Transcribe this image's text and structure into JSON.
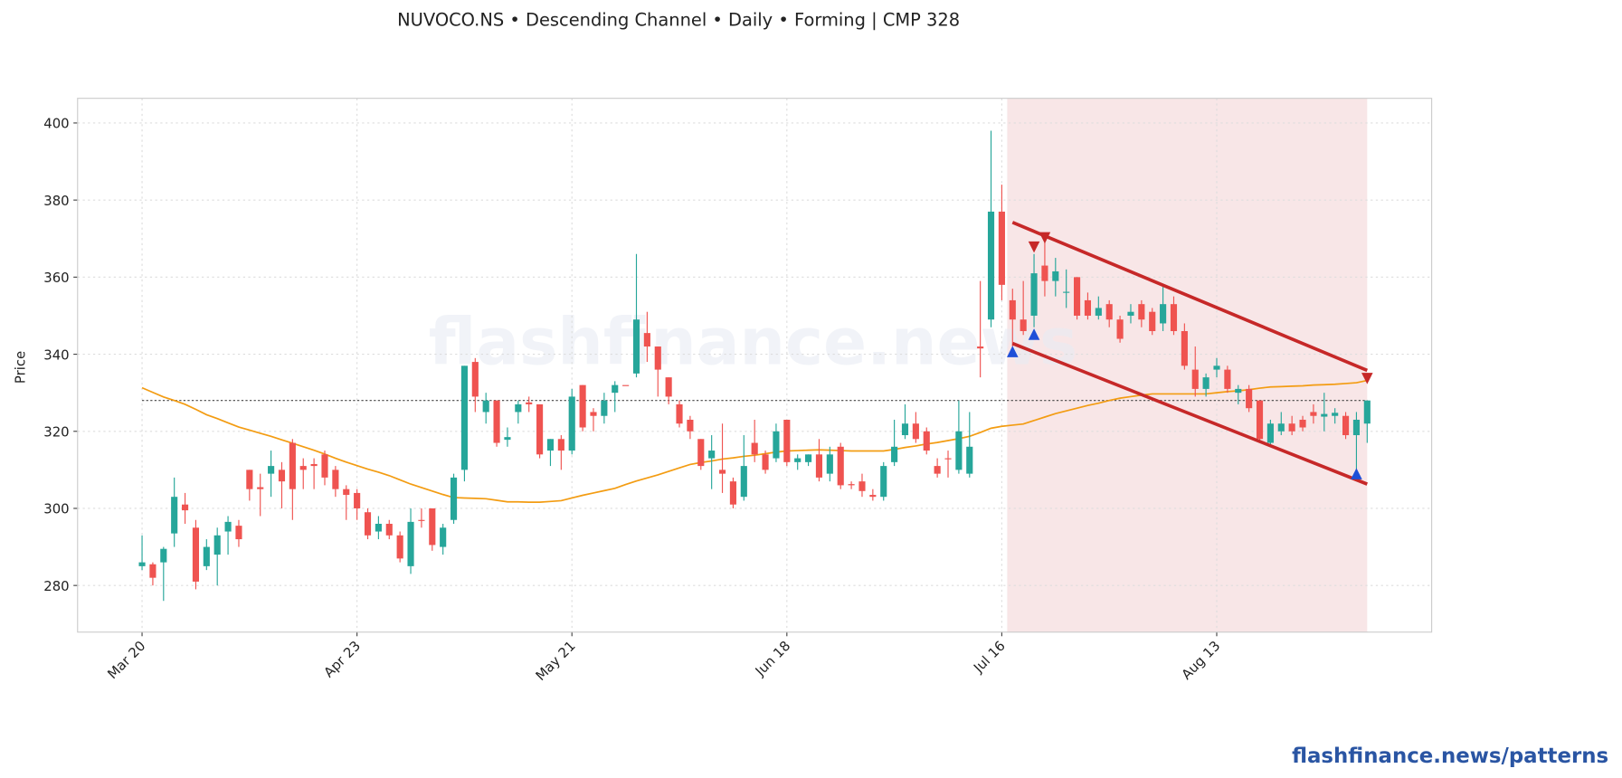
{
  "chart_data": {
    "type": "candlestick",
    "title": "NUVOCO.NS  •  Descending Channel  •  Daily  •  Forming  |  CMP 328",
    "y_label": "Price",
    "watermark": "flashfinance.news",
    "grid": true,
    "up_color": "#26a69a",
    "down_color": "#ef5350",
    "xlim": [
      -6,
      120
    ],
    "ylim": [
      267.9,
      406.4
    ],
    "yticks": [
      280,
      300,
      320,
      340,
      360,
      380,
      400
    ],
    "categories": [
      "Mar 20",
      null,
      null,
      null,
      null,
      null,
      null,
      null,
      null,
      null,
      null,
      null,
      null,
      null,
      null,
      null,
      null,
      null,
      null,
      null,
      "Apr 23",
      null,
      null,
      null,
      null,
      null,
      null,
      null,
      null,
      null,
      null,
      null,
      null,
      null,
      null,
      null,
      null,
      null,
      null,
      null,
      "May 21",
      null,
      null,
      null,
      null,
      null,
      null,
      null,
      null,
      null,
      null,
      null,
      null,
      null,
      null,
      null,
      null,
      null,
      null,
      null,
      "Jun 18",
      null,
      null,
      null,
      null,
      null,
      null,
      null,
      null,
      null,
      null,
      null,
      null,
      null,
      null,
      null,
      null,
      null,
      null,
      null,
      "Jul 16",
      null,
      null,
      null,
      null,
      null,
      null,
      null,
      null,
      null,
      null,
      null,
      null,
      null,
      null,
      null,
      null,
      null,
      null,
      null,
      "Aug 13",
      null,
      null,
      null,
      null,
      null,
      null,
      null,
      null,
      null,
      null,
      null,
      null,
      null,
      null
    ],
    "open": [
      285,
      285.5,
      286,
      293.5,
      301,
      295,
      285,
      288,
      294,
      295.5,
      310,
      305.5,
      309,
      310,
      317,
      311,
      311.5,
      314,
      310,
      305,
      304,
      299,
      294,
      296,
      293,
      285,
      297,
      300,
      290,
      297,
      310,
      338,
      325,
      328,
      317.8,
      325,
      327.5,
      327,
      315,
      318,
      315,
      332,
      325,
      324,
      330,
      332,
      335,
      345.5,
      342,
      334,
      327,
      323,
      318,
      313,
      310,
      307,
      303,
      317,
      314,
      313,
      323,
      312,
      312,
      314,
      309,
      316,
      306.3,
      307,
      303.5,
      303,
      312,
      319,
      322,
      320,
      311,
      313,
      310,
      309,
      342,
      349,
      377,
      354,
      349,
      350,
      363,
      359,
      356,
      360,
      354,
      350,
      353,
      349,
      350,
      353,
      351,
      348,
      353,
      346,
      336,
      331,
      336,
      336,
      330,
      331,
      328,
      317,
      320,
      322,
      323,
      325,
      323.8,
      324,
      324,
      319,
      322
    ],
    "high": [
      293,
      286,
      290,
      308,
      304,
      297,
      292,
      295,
      298,
      297,
      310,
      309,
      315,
      312,
      318,
      313,
      313,
      315,
      311,
      306,
      305,
      300,
      298,
      297,
      294,
      300,
      300,
      300,
      296,
      309,
      337,
      339,
      330,
      328,
      321,
      328,
      329,
      327,
      318,
      319,
      331,
      332,
      326,
      330,
      333,
      332,
      366,
      351,
      342,
      334,
      328,
      324,
      318,
      319,
      322,
      308,
      319,
      323,
      315,
      322,
      323,
      314,
      314,
      318,
      316,
      317,
      307,
      309,
      305,
      312,
      323,
      327,
      325,
      321,
      313,
      315,
      328,
      325,
      359,
      398,
      384,
      357,
      359,
      366,
      369,
      365,
      362,
      360,
      356,
      355,
      354,
      350,
      353,
      354,
      352,
      358,
      355,
      348,
      342,
      335,
      339,
      337,
      332,
      332,
      328,
      323,
      325,
      324,
      324,
      327,
      330,
      326,
      325,
      325,
      328
    ],
    "low": [
      284,
      280,
      276,
      290,
      296,
      279,
      284,
      280,
      288,
      290,
      302,
      298,
      303,
      300,
      297,
      305,
      305,
      306,
      303,
      297,
      297,
      292,
      292,
      292,
      286,
      283,
      295,
      289,
      288,
      296,
      307,
      325,
      322,
      316,
      316,
      322,
      325,
      313,
      311,
      310,
      314,
      320,
      320,
      322,
      325,
      332,
      334,
      338,
      329,
      327,
      321,
      318,
      310,
      305,
      304,
      300,
      302,
      312,
      309,
      312,
      311,
      310,
      311,
      307,
      307,
      305,
      305,
      303,
      302,
      302,
      311,
      318,
      317,
      314,
      308,
      308,
      309,
      308,
      334,
      347,
      354,
      342,
      345,
      347,
      355,
      355,
      352,
      349,
      349,
      349,
      347,
      343,
      348,
      347,
      345,
      346,
      345,
      336,
      329,
      329,
      334,
      330,
      327,
      325,
      317,
      316,
      319,
      319,
      320,
      322,
      320,
      322,
      318,
      309,
      317
    ],
    "close": [
      286,
      282,
      289.5,
      303,
      299.5,
      281,
      290,
      293,
      296.5,
      292,
      305,
      305,
      311,
      307,
      305,
      310,
      311,
      308,
      305,
      303.5,
      300,
      293,
      296,
      293,
      287,
      296.5,
      296.8,
      290.5,
      295,
      308,
      337,
      329,
      328,
      317,
      318.5,
      327,
      327,
      314,
      318,
      315,
      329,
      321,
      324,
      328,
      332,
      331.8,
      349,
      342,
      336,
      329,
      322,
      320,
      311,
      315,
      309,
      301,
      311,
      314,
      310,
      320,
      312,
      313,
      314,
      308,
      314,
      306,
      306,
      304.5,
      303,
      311,
      316,
      322,
      318,
      315,
      309,
      312.8,
      320,
      316,
      341.5,
      377,
      358,
      349,
      346,
      361,
      359,
      361.5,
      356.2,
      350,
      350,
      352,
      349,
      344,
      351,
      349,
      346,
      353,
      346,
      337,
      331,
      334,
      337,
      331,
      331,
      326,
      318,
      322,
      322,
      320,
      321,
      324,
      324.5,
      324.8,
      319,
      323,
      328
    ],
    "ma": {
      "color": "#f39c12",
      "values": [
        331.3,
        330.1,
        328.9,
        328.0,
        327.0,
        325.7,
        324.3,
        323.3,
        322.2,
        321.1,
        320.3,
        319.5,
        318.7,
        317.8,
        316.9,
        316.0,
        315.1,
        314.1,
        313.0,
        312.0,
        311.1,
        310.2,
        309.4,
        308.5,
        307.4,
        306.3,
        305.4,
        304.5,
        303.6,
        302.8,
        302.7,
        302.6,
        302.5,
        302.1,
        301.7,
        301.7,
        301.6,
        301.6,
        301.8,
        302.0,
        302.7,
        303.4,
        304.0,
        304.6,
        305.2,
        306.2,
        307.1,
        307.9,
        308.7,
        309.6,
        310.5,
        311.4,
        311.9,
        312.3,
        312.8,
        313.1,
        313.5,
        313.8,
        314.2,
        314.6,
        314.9,
        315.0,
        315.1,
        315.2,
        315.1,
        315.0,
        314.9,
        314.9,
        314.9,
        314.9,
        315.3,
        315.8,
        316.2,
        316.7,
        317.1,
        317.6,
        318.1,
        318.7,
        319.7,
        320.8,
        321.3,
        321.6,
        321.9,
        322.8,
        323.7,
        324.6,
        325.3,
        326.0,
        326.7,
        327.3,
        328.0,
        328.6,
        329.0,
        329.4,
        329.7,
        329.7,
        329.7,
        329.7,
        329.7,
        329.7,
        330.0,
        330.3,
        330.5,
        330.8,
        331.2,
        331.5,
        331.6,
        331.7,
        331.8,
        332.0,
        332.1,
        332.2,
        332.4,
        332.6,
        333.2
      ]
    },
    "cmp_line": {
      "value": 328,
      "color": "#444444"
    },
    "highlight": {
      "x": [
        80.5,
        114
      ],
      "color": "#f8e6e7"
    },
    "channel": {
      "color": "#c62828",
      "x": [
        81,
        114
      ],
      "upper": [
        374.2,
        335.8
      ],
      "lower": [
        342.8,
        306.3
      ]
    },
    "markers": [
      {
        "kind": "peak",
        "x": 83,
        "value": 367.8,
        "color": "#c62828"
      },
      {
        "kind": "peak",
        "x": 84,
        "value": 370.2,
        "color": "#c62828"
      },
      {
        "kind": "peak",
        "x": 114,
        "value": 333.7,
        "color": "#c62828"
      },
      {
        "kind": "trough",
        "x": 81,
        "value": 340.7,
        "color": "#1e4fd8"
      },
      {
        "kind": "trough",
        "x": 83,
        "value": 345.2,
        "color": "#1e4fd8"
      },
      {
        "kind": "trough",
        "x": 113,
        "value": 309,
        "color": "#1e4fd8"
      }
    ]
  },
  "footer": "flashfinance.news/patterns"
}
